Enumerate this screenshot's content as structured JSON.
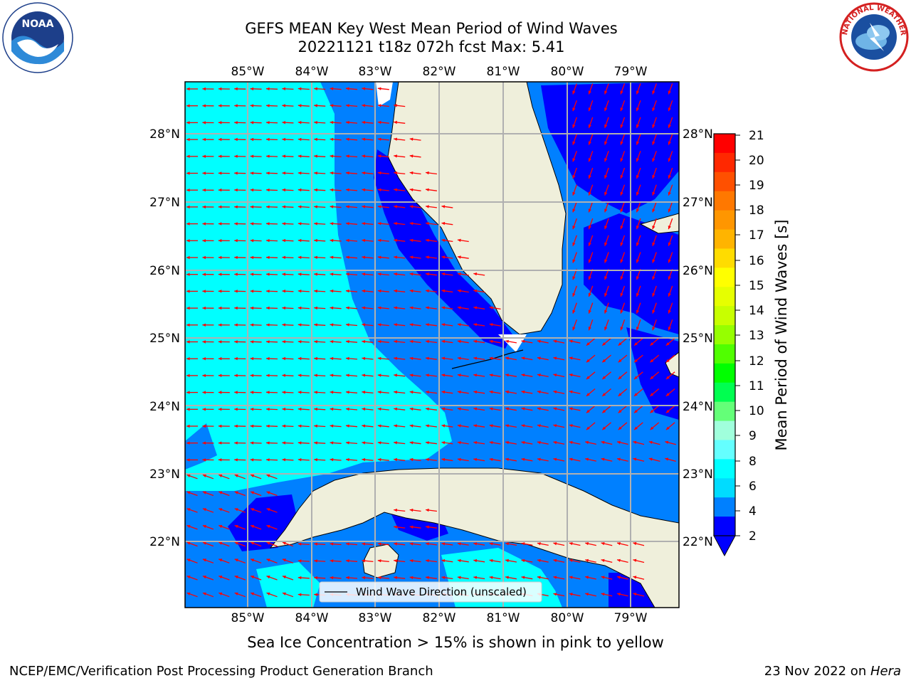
{
  "title": {
    "line1": "GEFS MEAN Key West Mean Period of Wind Waves",
    "line2": "20221121 t18z 072h fcst   Max: 5.41"
  },
  "map": {
    "lon_labels": [
      "85°W",
      "84°W",
      "83°W",
      "82°W",
      "81°W",
      "80°W",
      "79°W"
    ],
    "lat_labels": [
      "28°N",
      "27°N",
      "26°N",
      "25°N",
      "24°N",
      "23°N",
      "22°N"
    ],
    "legend_label": "Wind Wave Direction (unscaled)",
    "arrow_color": "#ff0000",
    "land_color": "#efefdb"
  },
  "colorbar": {
    "label": "Mean Period of Wind Waves [s]",
    "ticks": [
      "21",
      "20",
      "19",
      "18",
      "17",
      "16",
      "15",
      "14",
      "13",
      "12",
      "11",
      "10",
      "9",
      "8",
      "6",
      "4",
      "2"
    ],
    "colors": [
      "#ff0000",
      "#ff2800",
      "#ff5000",
      "#ff7800",
      "#ff9600",
      "#ffb400",
      "#ffdc00",
      "#ffff00",
      "#e6ff00",
      "#c8ff00",
      "#96ff00",
      "#50ff00",
      "#00ff00",
      "#00ff50",
      "#64ff78",
      "#a0ffdc",
      "#64ffff",
      "#00ffff",
      "#00dcff",
      "#0080ff",
      "#0000ff"
    ]
  },
  "footer": {
    "ice_note": "Sea Ice Concentration > 15% is shown in pink to yellow",
    "left": "NCEP/EMC/Verification Post Processing Product Generation Branch",
    "right_date": "23 Nov 2022 on ",
    "right_host": "Hera"
  },
  "logos": {
    "noaa_text": "NOAA",
    "nws_text": "NATIONAL WEATHER SERVICE"
  }
}
